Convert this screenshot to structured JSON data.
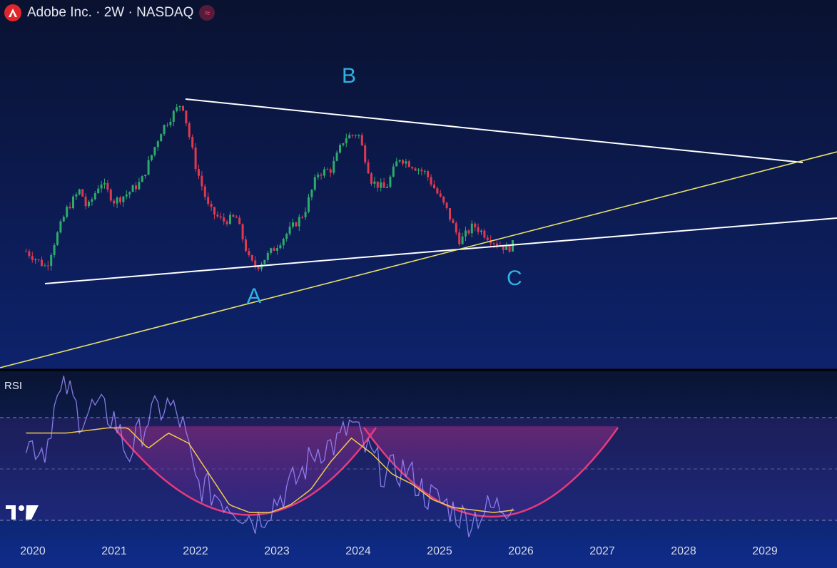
{
  "header": {
    "title": "Adobe Inc. · 2W · NASDAQ",
    "logo_icon": "adobe-logo-icon",
    "badge_icon": "approx-wave-icon",
    "brand_color": "#e0262b"
  },
  "rsi": {
    "label": "RSI",
    "levels": [
      70,
      50,
      30
    ],
    "line_color": "#9b8bff",
    "ma_color": "#f2c94c",
    "arc_color": "#e83a7a"
  },
  "colors": {
    "up": "#2eaa6a",
    "down": "#e0394f",
    "trendline": "#ffffff",
    "support": "#e6e06b",
    "point_label": "#2fb2e0"
  },
  "chart_data": {
    "type": "candlestick",
    "x_axis": {
      "tick_labels": [
        "2020",
        "2021",
        "2022",
        "2023",
        "2024",
        "2025",
        "2026",
        "2027",
        "2028",
        "2029"
      ]
    },
    "price_path": [
      [
        "2019-12",
        325
      ],
      [
        "2020-03",
        285
      ],
      [
        "2020-04",
        340
      ],
      [
        "2020-06",
        430
      ],
      [
        "2020-08",
        480
      ],
      [
        "2020-09",
        430
      ],
      [
        "2020-11",
        500
      ],
      [
        "2021-01",
        450
      ],
      [
        "2021-03",
        470
      ],
      [
        "2021-05",
        500
      ],
      [
        "2021-08",
        630
      ],
      [
        "2021-11",
        699
      ],
      [
        "2022-01",
        540
      ],
      [
        "2022-03",
        430
      ],
      [
        "2022-05",
        400
      ],
      [
        "2022-07",
        410
      ],
      [
        "2022-09",
        300
      ],
      [
        "2022-10",
        285
      ],
      [
        "2023-01",
        340
      ],
      [
        "2023-03",
        380
      ],
      [
        "2023-05",
        420
      ],
      [
        "2023-07",
        520
      ],
      [
        "2023-09",
        530
      ],
      [
        "2023-11",
        610
      ],
      [
        "2024-01",
        620
      ],
      [
        "2024-03",
        500
      ],
      [
        "2024-05",
        480
      ],
      [
        "2024-07",
        560
      ],
      [
        "2024-09",
        540
      ],
      [
        "2024-11",
        520
      ],
      [
        "2025-02",
        430
      ],
      [
        "2025-04",
        350
      ],
      [
        "2025-06",
        390
      ],
      [
        "2025-09",
        350
      ],
      [
        "2025-11",
        330
      ],
      [
        "2025-12",
        345
      ]
    ],
    "annotations": [
      {
        "label": "A"
      },
      {
        "label": "B"
      },
      {
        "label": "C"
      }
    ],
    "rsi_path": [
      [
        "2019-12",
        60
      ],
      [
        "2020-03",
        58
      ],
      [
        "2020-04",
        73
      ],
      [
        "2020-06",
        82
      ],
      [
        "2020-08",
        70
      ],
      [
        "2020-10",
        74
      ],
      [
        "2021-01",
        70
      ],
      [
        "2021-03",
        55
      ],
      [
        "2021-06",
        70
      ],
      [
        "2021-09",
        75
      ],
      [
        "2021-11",
        68
      ],
      [
        "2022-01",
        45
      ],
      [
        "2022-04",
        40
      ],
      [
        "2022-07",
        35
      ],
      [
        "2022-10",
        30
      ],
      [
        "2023-01",
        38
      ],
      [
        "2023-04",
        46
      ],
      [
        "2023-07",
        58
      ],
      [
        "2023-10",
        60
      ],
      [
        "2023-12",
        68
      ],
      [
        "2024-02",
        58
      ],
      [
        "2024-05",
        48
      ],
      [
        "2024-08",
        50
      ],
      [
        "2024-11",
        40
      ],
      [
        "2025-02",
        36
      ],
      [
        "2025-05",
        30
      ],
      [
        "2025-08",
        34
      ],
      [
        "2025-11",
        36
      ],
      [
        "2025-12",
        40
      ]
    ],
    "rsi_ma_path": [
      [
        "2019-12",
        64
      ],
      [
        "2020-06",
        64
      ],
      [
        "2020-12",
        66
      ],
      [
        "2021-03",
        66
      ],
      [
        "2021-06",
        58
      ],
      [
        "2021-09",
        64
      ],
      [
        "2021-12",
        60
      ],
      [
        "2022-03",
        48
      ],
      [
        "2022-06",
        36
      ],
      [
        "2022-09",
        33
      ],
      [
        "2022-12",
        33
      ],
      [
        "2023-03",
        36
      ],
      [
        "2023-06",
        42
      ],
      [
        "2023-09",
        53
      ],
      [
        "2023-12",
        62
      ],
      [
        "2024-03",
        56
      ],
      [
        "2024-06",
        48
      ],
      [
        "2024-09",
        44
      ],
      [
        "2024-12",
        38
      ],
      [
        "2025-03",
        35
      ],
      [
        "2025-06",
        34
      ],
      [
        "2025-09",
        33
      ],
      [
        "2025-12",
        34
      ]
    ]
  }
}
